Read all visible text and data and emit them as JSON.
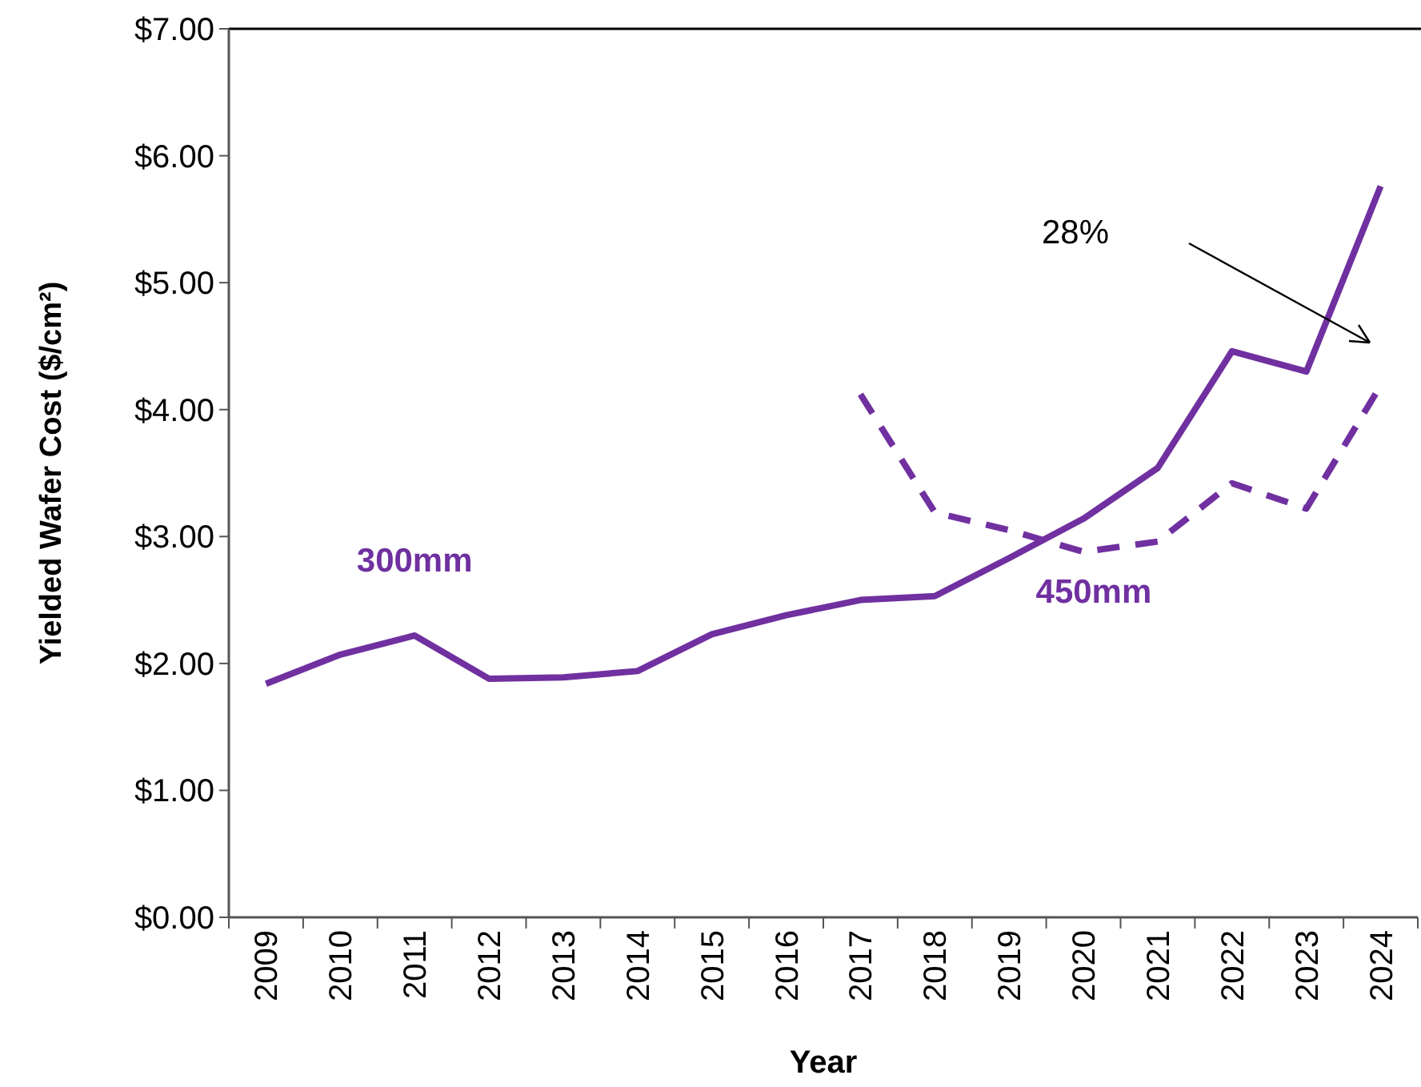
{
  "chart_data": {
    "type": "line",
    "xlabel": "Year",
    "ylabel": "Yielded Wafer Cost ($/cm²)",
    "categories": [
      "2009",
      "2010",
      "2011",
      "2012",
      "2013",
      "2014",
      "2015",
      "2016",
      "2017",
      "2018",
      "2019",
      "2020",
      "2021",
      "2022",
      "2023",
      "2024"
    ],
    "series": [
      {
        "name": "300mm",
        "color": "#7030a0",
        "line_style": "solid",
        "values": [
          1.84,
          2.07,
          2.22,
          1.88,
          1.89,
          1.94,
          2.23,
          2.38,
          2.5,
          2.53,
          2.83,
          3.14,
          3.54,
          4.46,
          4.3,
          5.76
        ]
      },
      {
        "name": "450mm",
        "color": "#7030a0",
        "line_style": "dashed",
        "values": [
          null,
          null,
          null,
          null,
          null,
          null,
          null,
          null,
          4.12,
          3.19,
          3.05,
          2.88,
          2.96,
          3.42,
          3.22,
          4.19
        ]
      }
    ],
    "ylim": [
      0,
      7
    ],
    "yticks": [
      {
        "value": 0,
        "label": "$0.00"
      },
      {
        "value": 1,
        "label": "$1.00"
      },
      {
        "value": 2,
        "label": "$2.00"
      },
      {
        "value": 3,
        "label": "$3.00"
      },
      {
        "value": 4,
        "label": "$4.00"
      },
      {
        "value": 5,
        "label": "$5.00"
      },
      {
        "value": 6,
        "label": "$6.00"
      },
      {
        "value": 7,
        "label": "$7.00"
      }
    ],
    "annotations": [
      "28%"
    ],
    "grid": false,
    "marker": "none"
  }
}
